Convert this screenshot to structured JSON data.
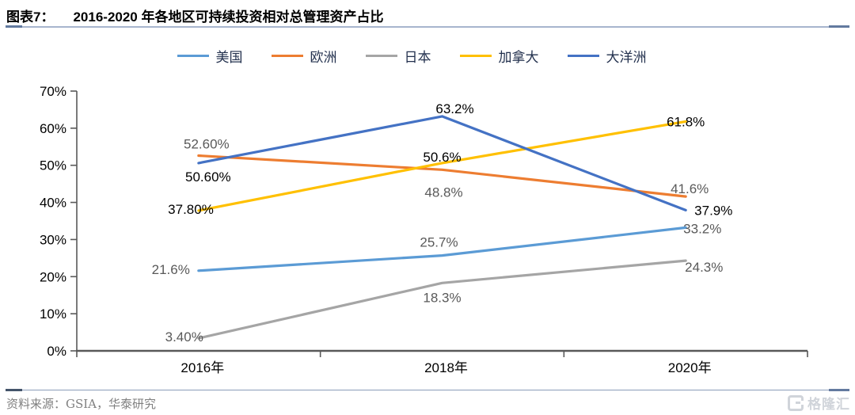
{
  "header": {
    "figure_label": "图表7：",
    "title": "2016-2020 年各地区可持续投资相对总管理资产占比"
  },
  "chart_data": {
    "type": "line",
    "title": "2016-2020 年各地区可持续投资相对总管理资产占比",
    "categories": [
      "2016年",
      "2018年",
      "2020年"
    ],
    "series": [
      {
        "id": "usa",
        "name": "美国",
        "color": "#5B9BD5",
        "values": [
          21.6,
          25.7,
          33.2
        ],
        "labels": [
          "21.6%",
          "25.7%",
          "33.2%"
        ],
        "label_color": "#595959"
      },
      {
        "id": "europe",
        "name": "欧洲",
        "color": "#ED7D31",
        "values": [
          52.6,
          48.8,
          41.6
        ],
        "labels": [
          "52.60%",
          "48.8%",
          "41.6%"
        ],
        "label_color": "#595959"
      },
      {
        "id": "japan",
        "name": "日本",
        "color": "#A5A5A5",
        "values": [
          3.4,
          18.3,
          24.3
        ],
        "labels": [
          "3.40%",
          "18.3%",
          "24.3%"
        ],
        "label_color": "#595959"
      },
      {
        "id": "canada",
        "name": "加拿大",
        "color": "#FFC000",
        "values": [
          37.8,
          50.6,
          61.8
        ],
        "labels": [
          "37.80%",
          "50.6%",
          "61.8%"
        ],
        "label_color": "#000000"
      },
      {
        "id": "oceania",
        "name": "大洋洲",
        "color": "#4472C4",
        "values": [
          50.6,
          63.2,
          37.9
        ],
        "labels": [
          "50.60%",
          "63.2%",
          "37.9%"
        ],
        "label_color": "#000000"
      }
    ],
    "ylim": [
      0,
      70
    ],
    "ytick_values": [
      0,
      10,
      20,
      30,
      40,
      50,
      60,
      70
    ],
    "ytick_labels": [
      "0%",
      "10%",
      "20%",
      "30%",
      "40%",
      "50%",
      "60%",
      "70%"
    ],
    "xlabel": "",
    "ylabel": "",
    "grid": false,
    "legend_position": "top",
    "axis_color": "#595959",
    "tick_label_color": "#000000"
  },
  "footer": {
    "source": "资料来源：GSIA，华泰研究",
    "watermark": "格隆汇"
  }
}
